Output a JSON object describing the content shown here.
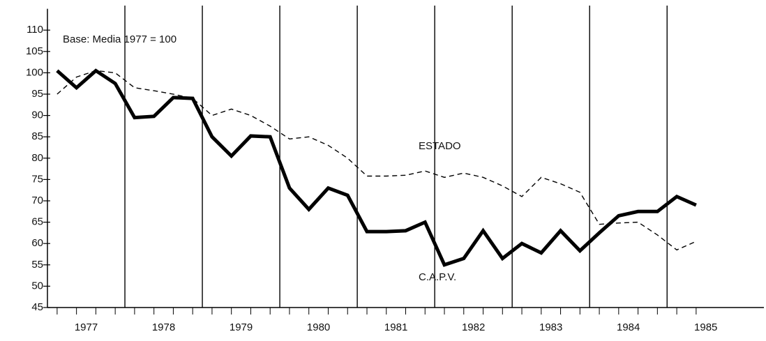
{
  "chart_data": {
    "type": "line",
    "annotation": "Base: Media 1977 = 100",
    "x": [
      1977.125,
      1977.375,
      1977.625,
      1977.875,
      1978.125,
      1978.375,
      1978.625,
      1978.875,
      1979.125,
      1979.375,
      1979.625,
      1979.875,
      1980.125,
      1980.375,
      1980.625,
      1980.875,
      1981.125,
      1981.375,
      1981.625,
      1981.875,
      1982.125,
      1982.375,
      1982.625,
      1982.875,
      1983.125,
      1983.375,
      1983.625,
      1983.875,
      1984.125,
      1984.375,
      1984.625,
      1984.875,
      1985.125,
      1985.375
    ],
    "series": [
      {
        "name": "C.A.P.V.",
        "color": "#000000",
        "style": "solid",
        "values": [
          100.5,
          96.5,
          100.5,
          97.5,
          89.5,
          89.8,
          94.2,
          94,
          85,
          80.5,
          85.2,
          85,
          73,
          68,
          73,
          71.3,
          62.8,
          62.8,
          63,
          65,
          55,
          56.5,
          63,
          56.5,
          60,
          57.8,
          63,
          58.3,
          62.5,
          66.5,
          67.5,
          67.5,
          71,
          69
        ]
      },
      {
        "name": "ESTADO",
        "color": "#000000",
        "style": "dashed",
        "values": [
          95,
          99,
          100.5,
          100,
          96.5,
          95.8,
          95,
          94,
          90,
          91.5,
          90,
          87.5,
          84.5,
          85,
          83,
          80,
          75.8,
          75.8,
          76,
          77,
          75.5,
          76.5,
          75.5,
          73.5,
          71,
          75.5,
          74,
          72,
          64.5,
          64.8,
          65,
          62,
          58.5,
          60.5
        ]
      }
    ],
    "xlim": [
      1977.0,
      1986.25
    ],
    "xticks": [
      {
        "value": 1977.5,
        "label": "1977"
      },
      {
        "value": 1978.5,
        "label": "1978"
      },
      {
        "value": 1979.5,
        "label": "1979"
      },
      {
        "value": 1980.5,
        "label": "1980"
      },
      {
        "value": 1981.5,
        "label": "1981"
      },
      {
        "value": 1982.5,
        "label": "1982"
      },
      {
        "value": 1983.5,
        "label": "1983"
      },
      {
        "value": 1984.5,
        "label": "1984"
      },
      {
        "value": 1985.5,
        "label": "1985"
      }
    ],
    "year_lines": [
      1978,
      1979,
      1980,
      1981,
      1982,
      1983,
      1984,
      1985
    ],
    "ylim": [
      45,
      115
    ],
    "yticks": [
      45,
      50,
      55,
      60,
      65,
      70,
      75,
      80,
      85,
      90,
      95,
      100,
      105,
      110
    ]
  }
}
